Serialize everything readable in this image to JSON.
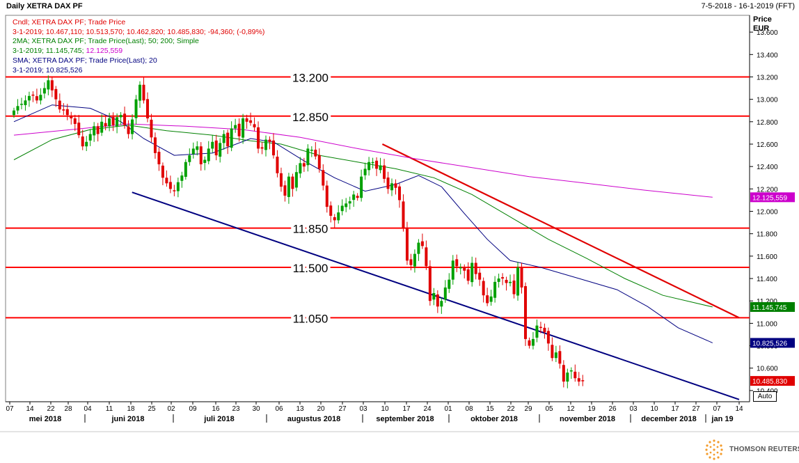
{
  "header": {
    "title": "Daily XETRA DAX PF",
    "date_range": "7-5-2018 - 16-1-2019 (FFT)"
  },
  "legend": {
    "candle_label": "Cndl; XETRA DAX PF; Trade Price",
    "candle_values": "3-1-2019; 10.467,110; 10.513,570; 10.462,820; 10.485,830; -94,360; (-0,89%)",
    "ma2_label": "2MA; XETRA DAX PF; Trade Price(Last); 50; 200; Simple",
    "ma2_values_prefix": "3-1-2019; 11.145,745; ",
    "ma2_value_200": "12.125,559",
    "sma_label": "SMA; XETRA DAX PF; Trade Price(Last); 20",
    "sma_values": "3-1-2019; 10.825,526"
  },
  "axis_unit": {
    "line1": "Price",
    "line2": "EUR"
  },
  "auto_button": "Auto",
  "brand": "THOMSON REUTERS",
  "colors": {
    "up": "#00a000",
    "down": "#e00000",
    "sma20": "#000080",
    "ma50": "#008000",
    "ma200": "#cc00cc",
    "resistance": "#ff0000",
    "support_trend": "#000080",
    "down_trend": "#e00000"
  },
  "chart_data": {
    "type": "candlestick",
    "ylim": [
      10300,
      13750
    ],
    "x_range": [
      "2018-05-07",
      "2019-01-16"
    ],
    "y_ticks": [
      "13.600",
      "13.400",
      "13.200",
      "13.000",
      "12.800",
      "12.600",
      "12.400",
      "12.200",
      "12.000",
      "11.800",
      "11.600",
      "11.400",
      "11.200",
      "11.000",
      "10.800",
      "10.600",
      "10.400"
    ],
    "x_day_ticks": [
      "07",
      "14",
      "22",
      "28",
      "04",
      "11",
      "18",
      "25",
      "02",
      "09",
      "16",
      "23",
      "30",
      "06",
      "13",
      "20",
      "27",
      "03",
      "10",
      "17",
      "24",
      "01",
      "08",
      "15",
      "22",
      "29",
      "05",
      "12",
      "19",
      "26",
      "03",
      "10",
      "17",
      "27",
      "07",
      "14"
    ],
    "x_month_labels": [
      "mei 2018",
      "juni 2018",
      "juli 2018",
      "augustus 2018",
      "september 2018",
      "oktober 2018",
      "november 2018",
      "december 2018",
      "jan 19"
    ],
    "horizontal_levels": [
      {
        "value": 13200,
        "label": "13.200"
      },
      {
        "value": 12850,
        "label": "12.850"
      },
      {
        "value": 11850,
        "label": "11.850"
      },
      {
        "value": 11500,
        "label": "11.500"
      },
      {
        "value": 11050,
        "label": "11.050"
      }
    ],
    "price_tags": [
      {
        "value": 12125.559,
        "label": "12.125,559",
        "series": "MA 200"
      },
      {
        "value": 11145.745,
        "label": "11.145,745",
        "series": "MA 50"
      },
      {
        "value": 10825.526,
        "label": "10.825,526",
        "series": "SMA 20"
      },
      {
        "value": 10485.83,
        "label": "10.485,830",
        "series": "Close"
      }
    ],
    "closes": [
      12900,
      12940,
      12960,
      12990,
      13030,
      13040,
      12990,
      13040,
      13100,
      13170,
      13080,
      13000,
      12910,
      12900,
      12860,
      12830,
      12780,
      12680,
      12580,
      12620,
      12690,
      12760,
      12690,
      12800,
      12760,
      12830,
      12770,
      12840,
      12860,
      12770,
      12690,
      12820,
      13000,
      13130,
      12990,
      12830,
      12660,
      12520,
      12420,
      12300,
      12250,
      12200,
      12180,
      12260,
      12320,
      12440,
      12500,
      12560,
      12580,
      12420,
      12460,
      12560,
      12620,
      12500,
      12610,
      12690,
      12580,
      12740,
      12770,
      12670,
      12830,
      12800,
      12790,
      12750,
      12560,
      12560,
      12640,
      12620,
      12500,
      12340,
      12220,
      12140,
      12310,
      12200,
      12350,
      12430,
      12400,
      12560,
      12550,
      12490,
      12380,
      12230,
      12040,
      11960,
      11920,
      11990,
      12050,
      12070,
      12090,
      12150,
      12120,
      12310,
      12380,
      12440,
      12440,
      12380,
      12410,
      12290,
      12200,
      12250,
      12210,
      12100,
      11850,
      11560,
      11520,
      11620,
      11720,
      11690,
      11510,
      11200,
      11270,
      11150,
      11200,
      11320,
      11390,
      11560,
      11510,
      11500,
      11470,
      11380,
      11540,
      11440,
      11390,
      11250,
      11180,
      11240,
      11370,
      11400,
      11400,
      11360,
      11370,
      11260,
      11500,
      11320,
      10860,
      10800,
      10860,
      10980,
      10960,
      10920,
      10820,
      10690,
      10740,
      10640,
      10480,
      10560,
      10580,
      10510,
      10480,
      10486
    ],
    "sma20": {
      "name": "SMA 20",
      "points": [
        [
          0,
          12800
        ],
        [
          10,
          12950
        ],
        [
          20,
          12920
        ],
        [
          28,
          12800
        ],
        [
          34,
          12650
        ],
        [
          42,
          12500
        ],
        [
          52,
          12520
        ],
        [
          62,
          12650
        ],
        [
          68,
          12620
        ],
        [
          76,
          12450
        ],
        [
          84,
          12300
        ],
        [
          92,
          12180
        ],
        [
          100,
          12240
        ],
        [
          106,
          12320
        ],
        [
          112,
          12220
        ],
        [
          118,
          11980
        ],
        [
          124,
          11750
        ],
        [
          130,
          11560
        ],
        [
          138,
          11500
        ],
        [
          148,
          11400
        ],
        [
          158,
          11300
        ],
        [
          166,
          11150
        ],
        [
          174,
          10960
        ],
        [
          183,
          10826
        ]
      ]
    },
    "ma50": {
      "name": "MA 50",
      "points": [
        [
          0,
          12460
        ],
        [
          10,
          12640
        ],
        [
          20,
          12730
        ],
        [
          30,
          12770
        ],
        [
          40,
          12720
        ],
        [
          52,
          12680
        ],
        [
          62,
          12630
        ],
        [
          70,
          12600
        ],
        [
          80,
          12500
        ],
        [
          90,
          12440
        ],
        [
          100,
          12380
        ],
        [
          110,
          12300
        ],
        [
          120,
          12150
        ],
        [
          130,
          11950
        ],
        [
          140,
          11750
        ],
        [
          150,
          11580
        ],
        [
          160,
          11400
        ],
        [
          170,
          11250
        ],
        [
          183,
          11146
        ]
      ]
    },
    "ma200": {
      "name": "MA 200",
      "points": [
        [
          0,
          12680
        ],
        [
          15,
          12730
        ],
        [
          30,
          12780
        ],
        [
          45,
          12760
        ],
        [
          60,
          12730
        ],
        [
          75,
          12660
        ],
        [
          90,
          12560
        ],
        [
          105,
          12470
        ],
        [
          120,
          12390
        ],
        [
          135,
          12310
        ],
        [
          150,
          12250
        ],
        [
          165,
          12190
        ],
        [
          183,
          12126
        ]
      ]
    },
    "down_trend": {
      "from": [
        "2018-09-14",
        12600
      ],
      "to": [
        "2019-01-16",
        11050
      ]
    },
    "support_trend": {
      "from": [
        "2018-06-19",
        12170
      ],
      "to": [
        "2019-01-16",
        10320
      ]
    }
  }
}
